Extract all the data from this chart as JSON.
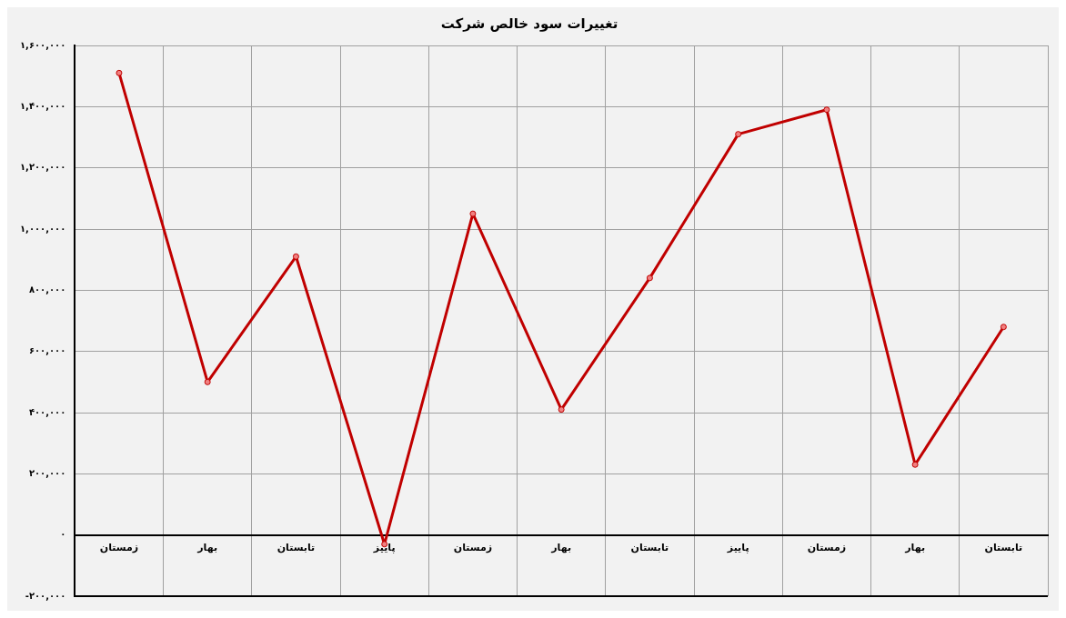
{
  "chart_data": {
    "type": "line",
    "title": "تغییرات سود خالص شرکت",
    "categories": [
      "زمستان",
      "بهار",
      "تابستان",
      "پاییز",
      "زمستان",
      "بهار",
      "تابستان",
      "پاییز",
      "زمستان",
      "بهار",
      "تابستان"
    ],
    "series": [
      {
        "color": "#c00000",
        "values": [
          1510000,
          500000,
          910000,
          -30000,
          1050000,
          410000,
          840000,
          1310000,
          1390000,
          230000,
          680000
        ]
      }
    ],
    "ylim": [
      -200000,
      1600000
    ],
    "yticks": [
      {
        "value": -200000,
        "label": "-۲۰۰,۰۰۰"
      },
      {
        "value": 0,
        "label": "۰"
      },
      {
        "value": 200000,
        "label": "۲۰۰,۰۰۰"
      },
      {
        "value": 400000,
        "label": "۴۰۰,۰۰۰"
      },
      {
        "value": 600000,
        "label": "۶۰۰,۰۰۰"
      },
      {
        "value": 800000,
        "label": "۸۰۰,۰۰۰"
      },
      {
        "value": 1000000,
        "label": "۱,۰۰۰,۰۰۰"
      },
      {
        "value": 1200000,
        "label": "۱,۲۰۰,۰۰۰"
      },
      {
        "value": 1400000,
        "label": "۱,۴۰۰,۰۰۰"
      },
      {
        "value": 1600000,
        "label": "۱,۶۰۰,۰۰۰"
      }
    ],
    "grid": true,
    "legend": false,
    "marker": "circle",
    "line_style": "solid"
  }
}
